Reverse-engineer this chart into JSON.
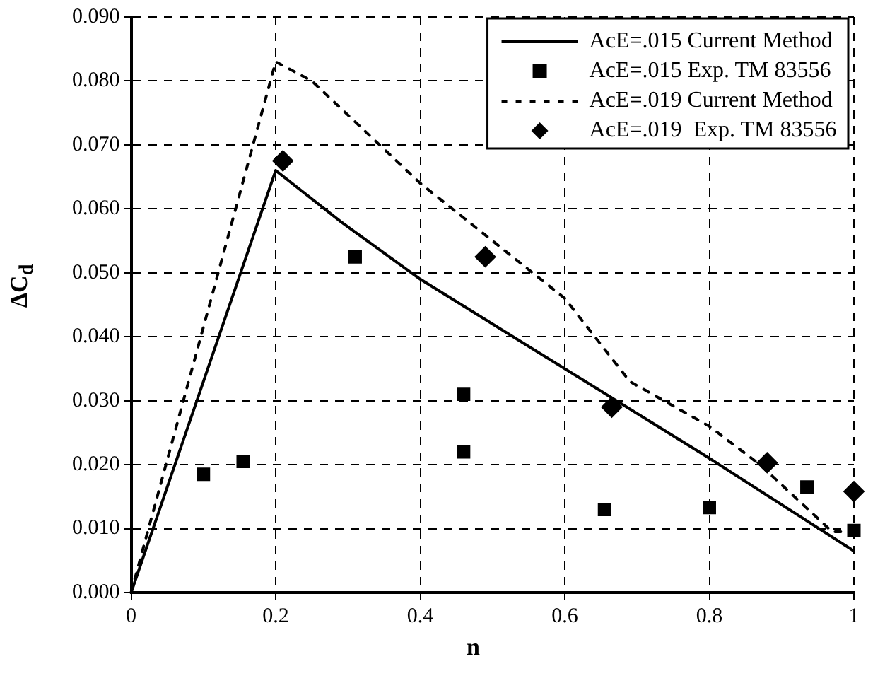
{
  "chart_data": {
    "type": "line",
    "xlabel": "n",
    "ylabel": "ΔC$_{d}$",
    "xlim": [
      0,
      1
    ],
    "ylim": [
      0,
      0.09
    ],
    "xticks": [
      0,
      0.2,
      0.4,
      0.6,
      0.8,
      1
    ],
    "yticks": [
      {
        "value": 0,
        "label": "0.000"
      },
      {
        "value": 0.01,
        "label": "0.010"
      },
      {
        "value": 0.02,
        "label": "0.020"
      },
      {
        "value": 0.03,
        "label": "0.030"
      },
      {
        "value": 0.04,
        "label": "0.040"
      },
      {
        "value": 0.05,
        "label": "0.050"
      },
      {
        "value": 0.06,
        "label": "0.060"
      },
      {
        "value": 0.07,
        "label": "0.070"
      },
      {
        "value": 0.08,
        "label": "0.080"
      },
      {
        "value": 0.09,
        "label": "0.090"
      }
    ],
    "grid": true,
    "legend": "top right",
    "series": [
      {
        "name": "AcE=.015 Current Method",
        "type": "line",
        "color": "#000000",
        "marker": "none",
        "line_style": "solid",
        "x": [
          0,
          0.2,
          0.29,
          0.4,
          0.8,
          1
        ],
        "values": [
          0,
          0.066,
          0.058,
          0.049,
          0.021,
          0.0065
        ]
      },
      {
        "name": "AcE=.015 Exp. TM 83556",
        "type": "scatter",
        "color": "#000000",
        "marker": "square",
        "x": [
          0.1,
          0.155,
          0.31,
          0.46,
          0.46,
          0.655,
          0.8,
          0.935,
          1
        ],
        "values": [
          0.0185,
          0.0205,
          0.0525,
          0.031,
          0.022,
          0.013,
          0.0133,
          0.0165,
          0.0097
        ]
      },
      {
        "name": "AcE=.019 Current Method",
        "type": "line",
        "color": "#000000",
        "marker": "none",
        "line_style": "dotted",
        "x": [
          0,
          0.2,
          0.25,
          0.4,
          0.5,
          0.6,
          0.69,
          0.8,
          0.87,
          0.97,
          1
        ],
        "values": [
          0,
          0.083,
          0.08,
          0.064,
          0.055,
          0.046,
          0.033,
          0.026,
          0.02,
          0.0095,
          0.0095
        ]
      },
      {
        "name": "AcE=.019  Exp. TM 83556",
        "type": "scatter",
        "color": "#000000",
        "marker": "diamond",
        "x": [
          0.21,
          0.49,
          0.665,
          0.88,
          1
        ],
        "values": [
          0.0675,
          0.0525,
          0.029,
          0.0203,
          0.0158
        ]
      }
    ]
  }
}
